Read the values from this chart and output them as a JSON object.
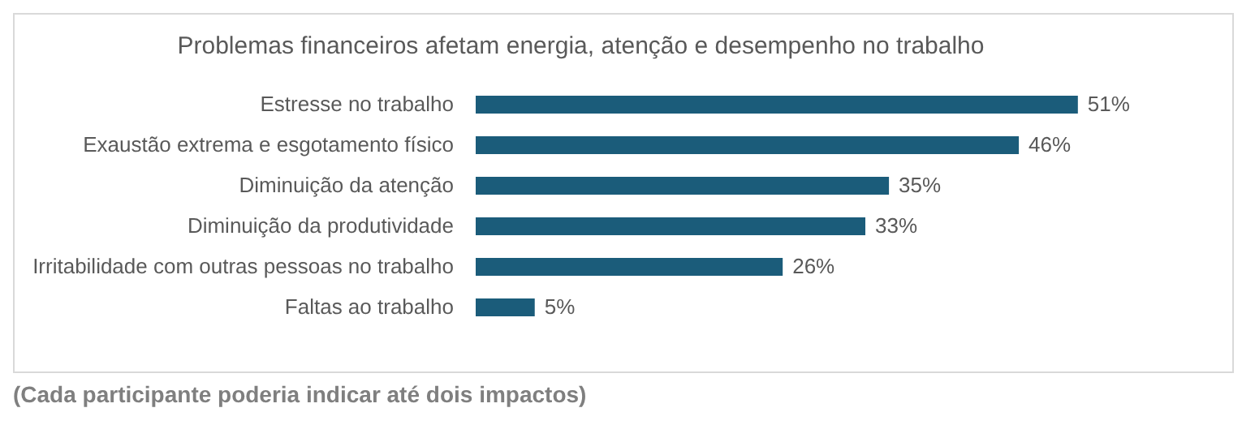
{
  "chart_data": {
    "type": "bar",
    "orientation": "horizontal",
    "title": "Problemas financeiros afetam energia, atenção e desempenho no trabalho",
    "categories": [
      "Estresse no trabalho",
      "Exaustão extrema e esgotamento físico",
      "Diminuição da atenção",
      "Diminuição da produtividade",
      "Irritabilidade com outras pessoas no trabalho",
      "Faltas ao trabalho"
    ],
    "values": [
      51,
      46,
      35,
      33,
      26,
      5
    ],
    "value_labels": [
      "51%",
      "46%",
      "35%",
      "33%",
      "26%",
      "5%"
    ],
    "color": "#1b5c7a",
    "annotations": [
      "(Cada participante poderia indicar até dois impactos)"
    ]
  }
}
